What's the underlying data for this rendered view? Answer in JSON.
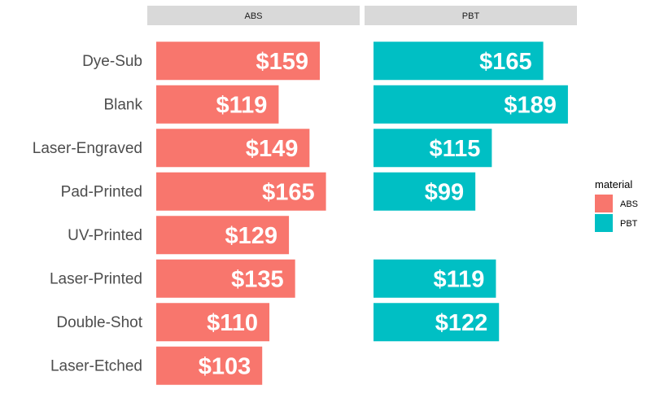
{
  "chart_data": {
    "type": "bar",
    "orientation": "horizontal",
    "facets": [
      {
        "name": "ABS",
        "color": "#F8766D",
        "values": [
          159,
          119,
          149,
          165,
          129,
          135,
          110,
          103
        ],
        "labels": [
          "$159",
          "$119",
          "$149",
          "$165",
          "$129",
          "$135",
          "$110",
          "$103"
        ]
      },
      {
        "name": "PBT",
        "color": "#00BFC4",
        "values": [
          165,
          189,
          115,
          99,
          null,
          119,
          122,
          null
        ],
        "labels": [
          "$165",
          "$189",
          "$115",
          "$99",
          "",
          "$119",
          "$122",
          ""
        ]
      }
    ],
    "categories": [
      "Dye-Sub",
      "Blank",
      "Laser-Engraved",
      "Pad-Printed",
      "UV-Printed",
      "Laser-Printed",
      "Double-Shot",
      "Laser-Etched"
    ],
    "xlim": [
      0,
      210
    ],
    "grid": false,
    "legend": {
      "title": "material",
      "position": "right",
      "entries": [
        {
          "name": "ABS",
          "color": "#F8766D"
        },
        {
          "name": "PBT",
          "color": "#00BFC4"
        }
      ]
    }
  }
}
